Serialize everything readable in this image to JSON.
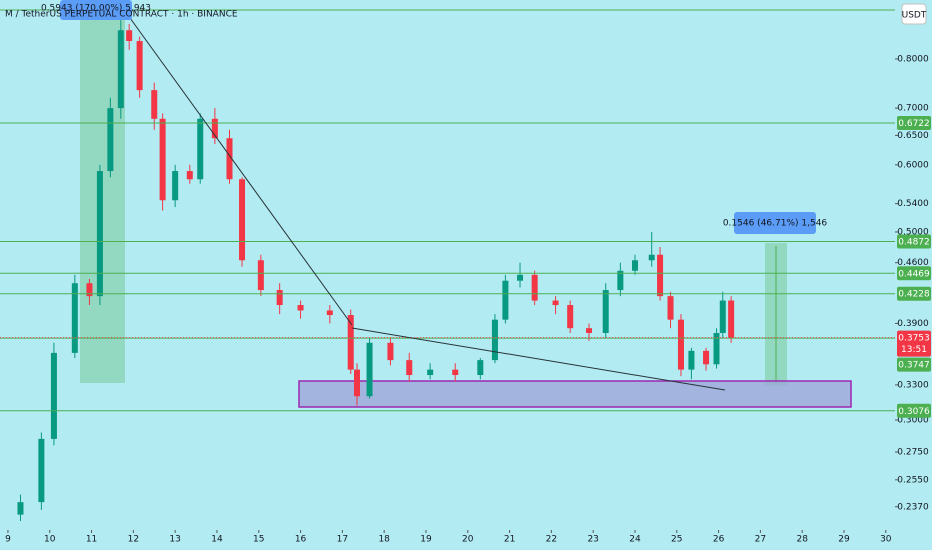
{
  "header": {
    "title": "M / TetherUS PERPETUAL CONTRACT · 1h · BINANCE",
    "currency": "USDT"
  },
  "chart_data": {
    "type": "candlestick",
    "x": [
      9.3,
      9.8,
      10.1,
      10.6,
      10.95,
      11.2,
      11.45,
      11.7,
      11.9,
      12.15,
      12.5,
      12.7,
      13.0,
      13.35,
      13.6,
      13.95,
      14.3,
      14.6,
      15.05,
      15.5,
      16.0,
      16.7,
      17.2,
      17.35,
      17.65,
      18.15,
      18.6,
      19.1,
      19.7,
      20.3,
      20.65,
      20.9,
      21.25,
      21.6,
      22.1,
      22.45,
      22.9,
      23.3,
      23.65,
      24.0,
      24.4,
      24.6,
      24.85,
      25.1,
      25.35,
      25.7,
      25.95,
      26.1,
      26.3
    ],
    "open": [
      0.232,
      0.24,
      0.285,
      0.36,
      0.435,
      0.42,
      0.59,
      0.7,
      0.865,
      0.84,
      0.735,
      0.68,
      0.545,
      0.59,
      0.577,
      0.68,
      0.645,
      0.577,
      0.463,
      0.427,
      0.41,
      0.404,
      0.399,
      0.344,
      0.32,
      0.37,
      0.353,
      0.339,
      0.344,
      0.339,
      0.353,
      0.394,
      0.438,
      0.445,
      0.415,
      0.41,
      0.385,
      0.38,
      0.427,
      0.45,
      0.463,
      0.47,
      0.42,
      0.394,
      0.344,
      0.362,
      0.349,
      0.38,
      0.415
    ],
    "high": [
      0.245,
      0.29,
      0.37,
      0.445,
      0.44,
      0.6,
      0.72,
      0.905,
      0.88,
      0.85,
      0.75,
      0.69,
      0.6,
      0.6,
      0.69,
      0.7,
      0.66,
      0.58,
      0.47,
      0.435,
      0.415,
      0.41,
      0.405,
      0.35,
      0.375,
      0.375,
      0.36,
      0.35,
      0.35,
      0.355,
      0.4,
      0.445,
      0.46,
      0.45,
      0.42,
      0.415,
      0.39,
      0.435,
      0.46,
      0.47,
      0.5,
      0.48,
      0.425,
      0.4,
      0.365,
      0.365,
      0.385,
      0.425,
      0.42
    ],
    "low": [
      0.228,
      0.235,
      0.28,
      0.355,
      0.41,
      0.41,
      0.58,
      0.68,
      0.82,
      0.72,
      0.66,
      0.53,
      0.535,
      0.57,
      0.57,
      0.635,
      0.57,
      0.455,
      0.42,
      0.4,
      0.395,
      0.39,
      0.34,
      0.312,
      0.318,
      0.348,
      0.333,
      0.335,
      0.333,
      0.335,
      0.35,
      0.39,
      0.43,
      0.41,
      0.4,
      0.38,
      0.372,
      0.375,
      0.42,
      0.445,
      0.455,
      0.415,
      0.385,
      0.338,
      0.335,
      0.343,
      0.345,
      0.375,
      0.37
    ],
    "close": [
      0.24,
      0.285,
      0.36,
      0.435,
      0.42,
      0.59,
      0.7,
      0.865,
      0.84,
      0.735,
      0.68,
      0.545,
      0.59,
      0.577,
      0.68,
      0.645,
      0.577,
      0.463,
      0.427,
      0.41,
      0.404,
      0.399,
      0.344,
      0.32,
      0.37,
      0.353,
      0.339,
      0.344,
      0.339,
      0.353,
      0.394,
      0.438,
      0.445,
      0.415,
      0.41,
      0.385,
      0.38,
      0.427,
      0.45,
      0.463,
      0.47,
      0.42,
      0.394,
      0.344,
      0.362,
      0.349,
      0.38,
      0.415,
      0.3753
    ],
    "up_color": "#089981",
    "down_color": "#f23645",
    "xlim": [
      8.81,
      30.22
    ],
    "xticks": [
      9,
      10,
      11,
      12,
      13,
      14,
      15,
      16,
      17,
      18,
      19,
      20,
      21,
      22,
      23,
      24,
      25,
      26,
      27,
      28,
      29,
      30
    ],
    "ylim": [
      0.2225,
      0.939
    ],
    "log_scale": true,
    "yticks": [
      {
        "value": 0.8,
        "label": "0.8000"
      },
      {
        "value": 0.7,
        "label": "0.7000"
      },
      {
        "value": 0.65,
        "label": "0.6500"
      },
      {
        "value": 0.6,
        "label": "0.6000"
      },
      {
        "value": 0.54,
        "label": "0.5400"
      },
      {
        "value": 0.5,
        "label": "0.5000"
      },
      {
        "value": 0.46,
        "label": "0.4600"
      },
      {
        "value": 0.39,
        "label": "0.3900"
      },
      {
        "value": 0.33,
        "label": "0.3300"
      },
      {
        "value": 0.3,
        "label": "0.3000"
      },
      {
        "value": 0.275,
        "label": "0.2750"
      },
      {
        "value": 0.255,
        "label": "0.2550"
      },
      {
        "value": 0.237,
        "label": "0.2370"
      }
    ],
    "levels": [
      0.6722,
      0.4872,
      0.4469,
      0.4228,
      0.3747,
      0.3076
    ],
    "level_color": "#4caf50",
    "last_price": 0.3753,
    "countdown": "13:51",
    "measure_labels": [
      "0.5943 (170.00%) 5,943",
      "0.1546 (46.71%) 1,546"
    ]
  }
}
